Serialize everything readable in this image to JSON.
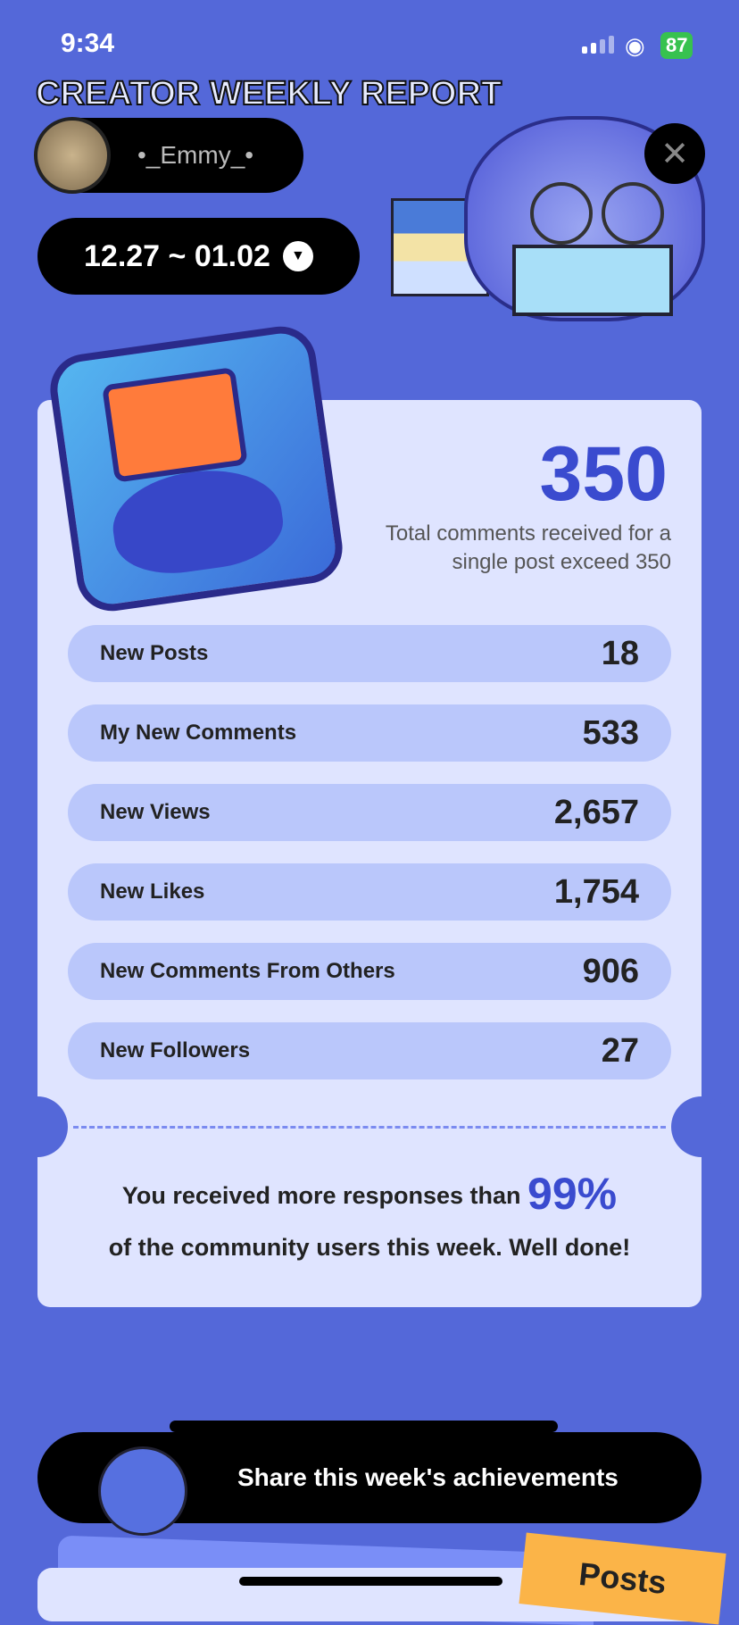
{
  "status_bar": {
    "time": "9:34",
    "battery": "87"
  },
  "header": {
    "title_art": "CREATOR WEEKLY REPORT",
    "username": "•_Emmy_•",
    "date_range": "12.27 ~ 01.02",
    "close_icon": "close-icon"
  },
  "achievement": {
    "value": "350",
    "description": "Total comments received for a single post exceed 350"
  },
  "stats": [
    {
      "label": "New Posts",
      "value": "18"
    },
    {
      "label": "My New Comments",
      "value": "533"
    },
    {
      "label": "New Views",
      "value": "2,657"
    },
    {
      "label": "New Likes",
      "value": "1,754"
    },
    {
      "label": "New Comments From Others",
      "value": "906"
    },
    {
      "label": "New Followers",
      "value": "27"
    }
  ],
  "summary": {
    "pre": "You received more responses than ",
    "percent": "99%",
    "post": "of the community users this week. Well done!"
  },
  "share_button": "Share this week's achievements",
  "bottom_tab": "Posts",
  "colors": {
    "background": "#5468d9",
    "accent": "#3a4bcf",
    "card": "#dfe4ff",
    "row": "#bac7fb",
    "tag": "#fbb448"
  }
}
